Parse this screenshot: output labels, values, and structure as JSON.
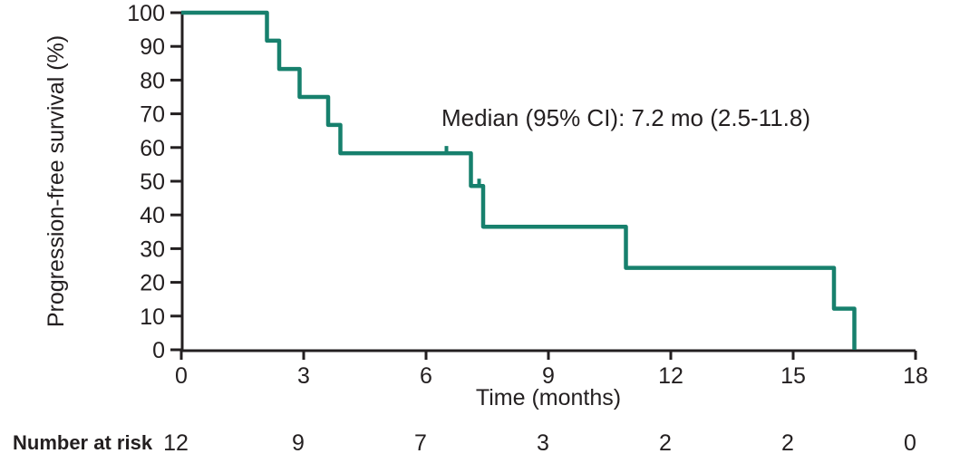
{
  "chart_data": {
    "type": "line",
    "subtype": "kaplan-meier-step",
    "title": "",
    "annotation": "Median (95% CI): 7.2 mo (2.5-11.8)",
    "xlabel": "Time (months)",
    "ylabel": "Progression-free survival (%)",
    "xlim": [
      0,
      18
    ],
    "ylim": [
      0,
      100
    ],
    "xticks": [
      0,
      3,
      6,
      9,
      12,
      15,
      18
    ],
    "yticks": [
      0,
      10,
      20,
      30,
      40,
      50,
      60,
      70,
      80,
      90,
      100
    ],
    "grid": false,
    "legend": "none",
    "series": [
      {
        "name": "Progression-free survival",
        "color": "#17806D",
        "steps": [
          [
            0,
            100
          ],
          [
            2.1,
            100
          ],
          [
            2.1,
            91.7
          ],
          [
            2.4,
            91.7
          ],
          [
            2.4,
            83.3
          ],
          [
            2.9,
            83.3
          ],
          [
            2.9,
            75.0
          ],
          [
            3.6,
            75.0
          ],
          [
            3.6,
            66.7
          ],
          [
            3.9,
            66.7
          ],
          [
            3.9,
            58.3
          ],
          [
            7.1,
            58.3
          ],
          [
            7.1,
            48.6
          ],
          [
            7.4,
            48.6
          ],
          [
            7.4,
            36.5
          ],
          [
            10.9,
            36.5
          ],
          [
            10.9,
            24.3
          ],
          [
            16.0,
            24.3
          ],
          [
            16.0,
            12.2
          ],
          [
            16.5,
            12.2
          ],
          [
            16.5,
            0
          ]
        ],
        "censor_marks": [
          [
            6.5,
            58.3
          ],
          [
            7.3,
            48.6
          ]
        ]
      }
    ],
    "number_at_risk": {
      "label": "Number at risk",
      "times": [
        0,
        3,
        6,
        9,
        12,
        15,
        18
      ],
      "values": [
        "12",
        "9",
        "7",
        "3",
        "2",
        "2",
        "0"
      ]
    },
    "colors": {
      "curve": "#17806D",
      "axis": "#231f20",
      "text": "#231f20"
    }
  }
}
